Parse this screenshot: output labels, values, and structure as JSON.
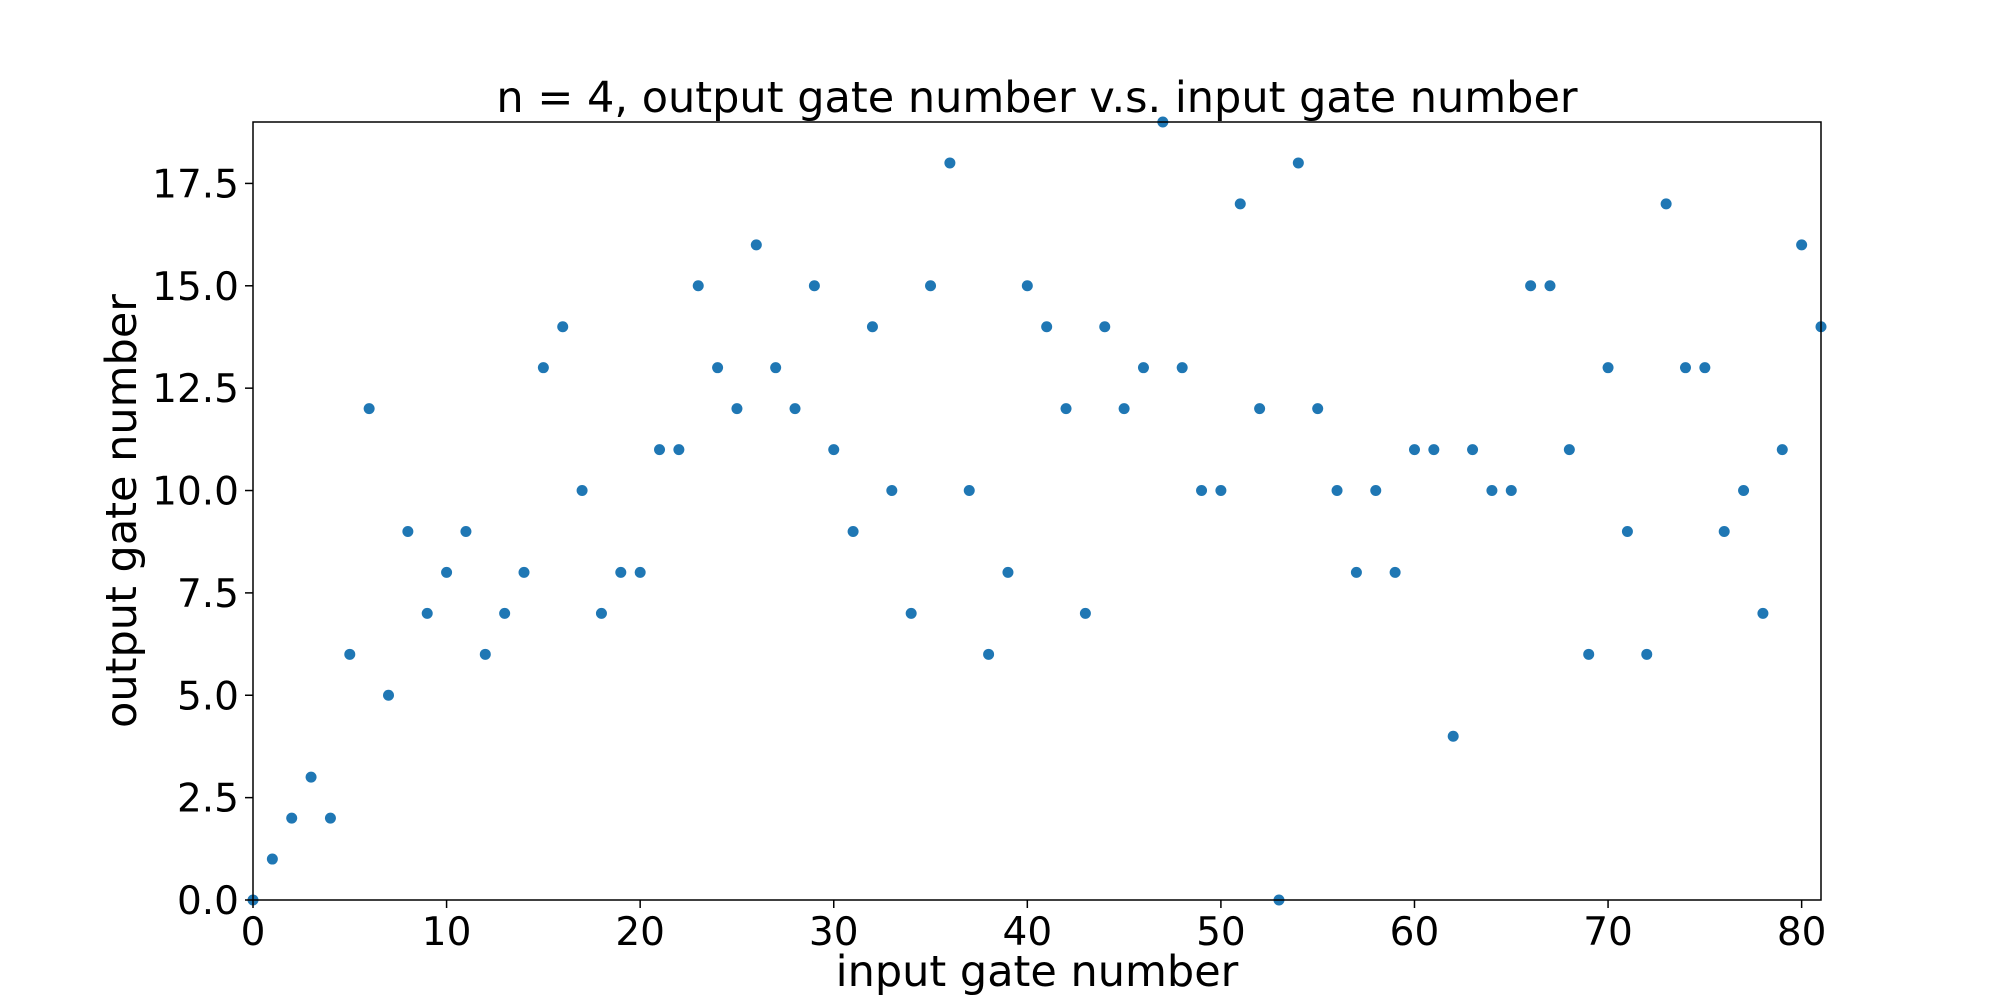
{
  "chart_data": {
    "type": "scatter",
    "title": "n = 4, output gate number v.s. input gate number",
    "xlabel": "input gate number",
    "ylabel": "output gate number",
    "xlim": [
      0,
      81
    ],
    "ylim": [
      0,
      19
    ],
    "xticks": [
      0,
      10,
      20,
      30,
      40,
      50,
      60,
      70,
      80
    ],
    "xtick_labels": [
      "0",
      "10",
      "20",
      "30",
      "40",
      "50",
      "60",
      "70",
      "80"
    ],
    "yticks": [
      0,
      2.5,
      5,
      7.5,
      10,
      12.5,
      15,
      17.5
    ],
    "ytick_labels": [
      "0.0",
      "2.5",
      "5.0",
      "7.5",
      "10.0",
      "12.5",
      "15.0",
      "17.5"
    ],
    "grid": false,
    "legend": "none",
    "marker_color": "#1f77b4",
    "series": [
      {
        "x": [
          0,
          1,
          2,
          3,
          4,
          5,
          6,
          7,
          8,
          9,
          10,
          11,
          12,
          13,
          14,
          15,
          16,
          17,
          18,
          19,
          20,
          21,
          22,
          23,
          24,
          25,
          26,
          27,
          28,
          29,
          30,
          31,
          32,
          33,
          34,
          35,
          36,
          37,
          38,
          39,
          40,
          41,
          42,
          43,
          44,
          45,
          46,
          47,
          48,
          49,
          50,
          51,
          52,
          53,
          54,
          55,
          56,
          57,
          58,
          59,
          60,
          61,
          62,
          63,
          64,
          65,
          66,
          67,
          68,
          69,
          70,
          71,
          72,
          73,
          74,
          75,
          76,
          77,
          78,
          79,
          80,
          81
        ],
        "y": [
          0,
          1,
          2,
          3,
          2,
          6,
          12,
          5,
          9,
          7,
          8,
          9,
          6,
          7,
          8,
          13,
          14,
          10,
          7,
          8,
          8,
          11,
          11,
          15,
          13,
          12,
          16,
          13,
          12,
          15,
          11,
          9,
          14,
          10,
          7,
          15,
          18,
          10,
          6,
          8,
          15,
          14,
          12,
          7,
          14,
          12,
          13,
          19,
          13,
          10,
          10,
          17,
          12,
          0,
          18,
          12,
          10,
          8,
          10,
          8,
          11,
          11,
          4,
          11,
          10,
          10,
          15,
          15,
          11,
          6,
          13,
          9,
          6,
          17,
          13,
          13,
          9,
          10,
          7,
          11,
          16,
          14
        ]
      }
    ]
  }
}
